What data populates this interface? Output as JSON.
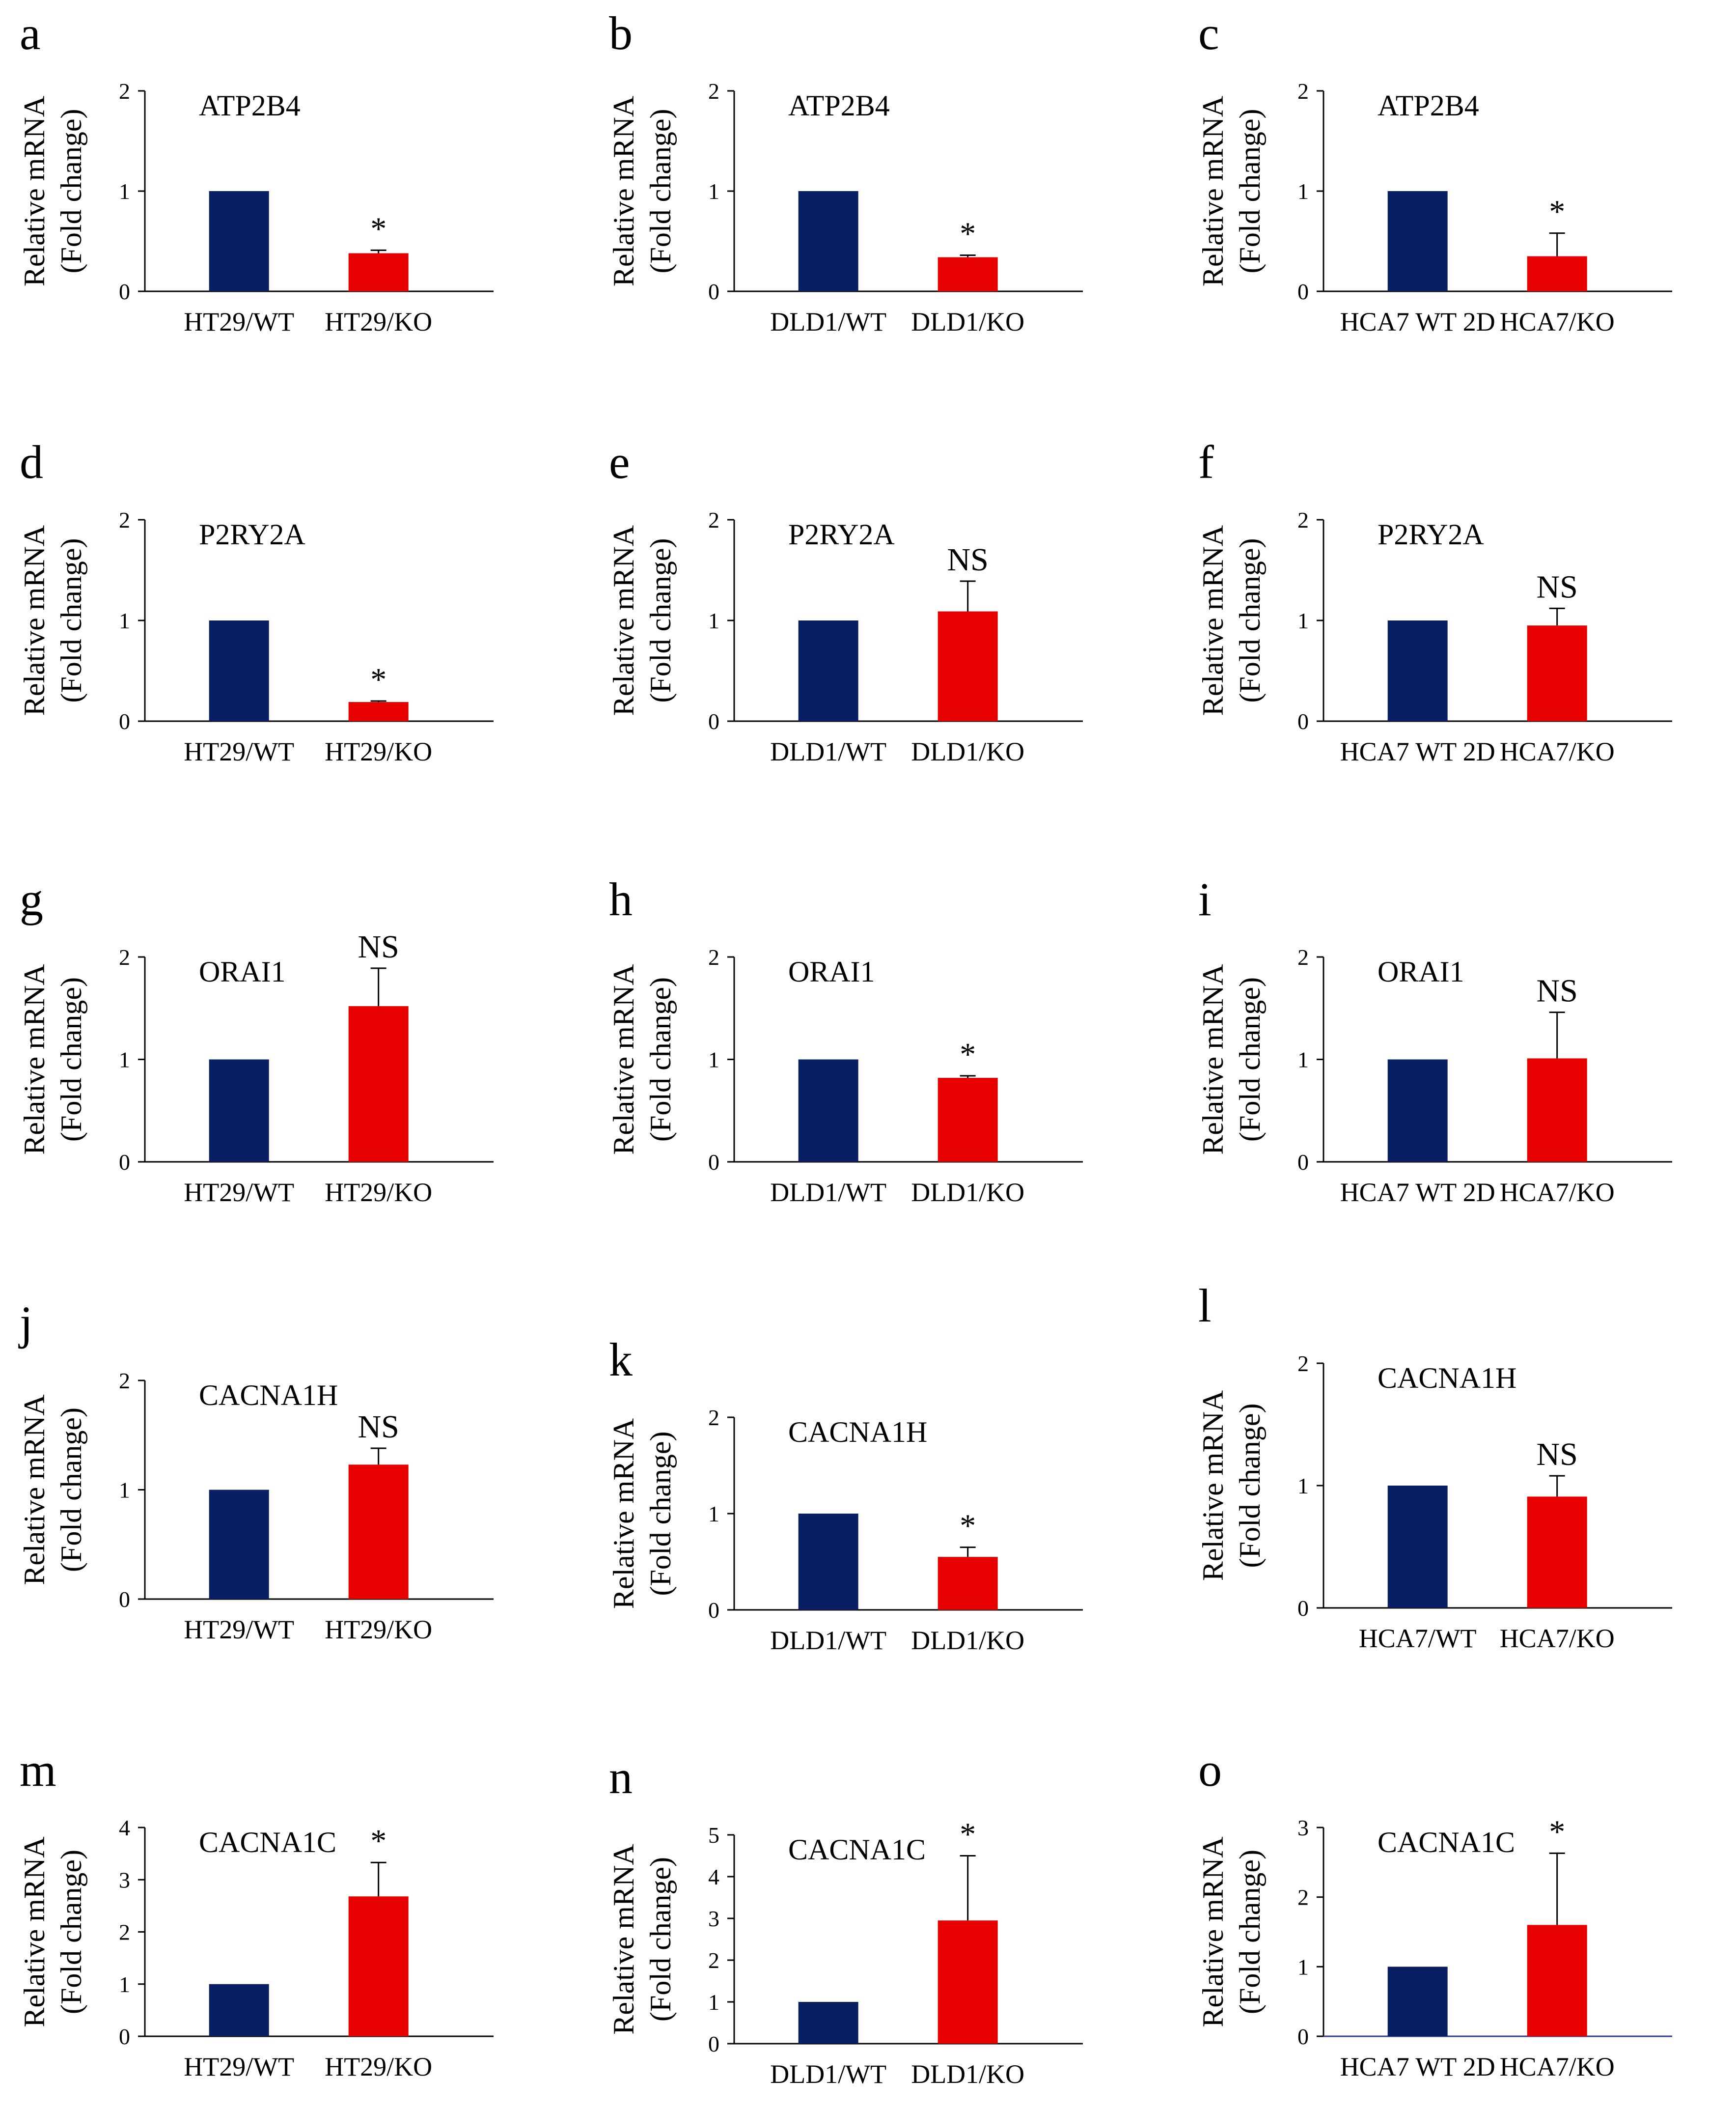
{
  "figure": {
    "colors": {
      "wt": "#0a1f63",
      "ko": "#e60000",
      "axis": "#000000",
      "axis_alt": "#2f3a8f"
    }
  },
  "chart_data": [
    {
      "type": "bar",
      "panel": "a",
      "title": "ATP2B4",
      "ylabel": "Relative mRNA",
      "ylabel2": "(Fold change)",
      "ylim": [
        0,
        2
      ],
      "yticks": [
        0,
        1,
        2
      ],
      "categories": [
        "HT29/WT",
        "HT29/KO"
      ],
      "values": [
        1.0,
        0.38
      ],
      "errors": [
        0.0,
        0.03
      ],
      "annotation": "*"
    },
    {
      "type": "bar",
      "panel": "b",
      "title": "ATP2B4",
      "ylabel": "Relative mRNA",
      "ylabel2": "(Fold change)",
      "ylim": [
        0,
        2
      ],
      "yticks": [
        0,
        1,
        2
      ],
      "categories": [
        "DLD1/WT",
        "DLD1/KO"
      ],
      "values": [
        1.0,
        0.34
      ],
      "errors": [
        0.0,
        0.02
      ],
      "annotation": "*"
    },
    {
      "type": "bar",
      "panel": "c",
      "title": "ATP2B4",
      "ylabel": "Relative mRNA",
      "ylabel2": "(Fold change)",
      "ylim": [
        0,
        2
      ],
      "yticks": [
        0,
        1,
        2
      ],
      "categories": [
        "HCA7 WT 2D",
        "HCA7/KO"
      ],
      "values": [
        1.0,
        0.35
      ],
      "errors": [
        0.0,
        0.23
      ],
      "annotation": "*"
    },
    {
      "type": "bar",
      "panel": "d",
      "title": "P2RY2A",
      "ylabel": "Relative mRNA",
      "ylabel2": "(Fold change)",
      "ylim": [
        0,
        2
      ],
      "yticks": [
        0,
        1,
        2
      ],
      "categories": [
        "HT29/WT",
        "HT29/KO"
      ],
      "values": [
        1.0,
        0.19
      ],
      "errors": [
        0.0,
        0.01
      ],
      "annotation": "*"
    },
    {
      "type": "bar",
      "panel": "e",
      "title": "P2RY2A",
      "ylabel": "Relative mRNA",
      "ylabel2": "(Fold change)",
      "ylim": [
        0,
        2
      ],
      "yticks": [
        0,
        1,
        2
      ],
      "categories": [
        "DLD1/WT",
        "DLD1/KO"
      ],
      "values": [
        1.0,
        1.09
      ],
      "errors": [
        0.0,
        0.3
      ],
      "annotation": "NS"
    },
    {
      "type": "bar",
      "panel": "f",
      "title": "P2RY2A",
      "ylabel": "Relative mRNA",
      "ylabel2": "(Fold change)",
      "ylim": [
        0,
        2
      ],
      "yticks": [
        0,
        1,
        2
      ],
      "categories": [
        "HCA7 WT 2D",
        "HCA7/KO"
      ],
      "values": [
        1.0,
        0.95
      ],
      "errors": [
        0.0,
        0.17
      ],
      "annotation": "NS"
    },
    {
      "type": "bar",
      "panel": "g",
      "title": "ORAI1",
      "ylabel": "Relative mRNA",
      "ylabel2": "(Fold change)",
      "ylim": [
        0,
        2
      ],
      "yticks": [
        0,
        1,
        2
      ],
      "categories": [
        "HT29/WT",
        "HT29/KO"
      ],
      "values": [
        1.0,
        1.52
      ],
      "errors": [
        0.0,
        0.37
      ],
      "annotation": "NS"
    },
    {
      "type": "bar",
      "panel": "h",
      "title": "ORAI1",
      "ylabel": "Relative mRNA",
      "ylabel2": "(Fold change)",
      "ylim": [
        0,
        2
      ],
      "yticks": [
        0,
        1,
        2
      ],
      "categories": [
        "DLD1/WT",
        "DLD1/KO"
      ],
      "values": [
        1.0,
        0.82
      ],
      "errors": [
        0.0,
        0.02
      ],
      "annotation": "*"
    },
    {
      "type": "bar",
      "panel": "i",
      "title": "ORAI1",
      "ylabel": "Relative mRNA",
      "ylabel2": "(Fold change)",
      "ylim": [
        0,
        2
      ],
      "yticks": [
        0,
        1,
        2
      ],
      "categories": [
        "HCA7 WT 2D",
        "HCA7/KO"
      ],
      "values": [
        1.0,
        1.01
      ],
      "errors": [
        0.0,
        0.45
      ],
      "annotation": "NS"
    },
    {
      "type": "bar",
      "panel": "j",
      "title": "CACNA1H",
      "ylabel": "Relative mRNA",
      "ylabel2": "(Fold change)",
      "ylim": [
        0,
        2
      ],
      "yticks": [
        0,
        1,
        2
      ],
      "categories": [
        "HT29/WT",
        "HT29/KO"
      ],
      "values": [
        1.0,
        1.23
      ],
      "errors": [
        0.0,
        0.15
      ],
      "annotation": "NS"
    },
    {
      "type": "bar",
      "panel": "k",
      "title": "CACNA1H",
      "ylabel": "Relative mRNA",
      "ylabel2": "(Fold change)",
      "ylim": [
        0,
        2
      ],
      "yticks": [
        0,
        1,
        2
      ],
      "categories": [
        "DLD1/WT",
        "DLD1/KO"
      ],
      "values": [
        1.0,
        0.55
      ],
      "errors": [
        0.0,
        0.1
      ],
      "annotation": "*"
    },
    {
      "type": "bar",
      "panel": "l",
      "title": "CACNA1H",
      "ylabel": "Relative mRNA",
      "ylabel2": "(Fold change)",
      "ylim": [
        0,
        2
      ],
      "yticks": [
        0,
        1,
        2
      ],
      "categories": [
        "HCA7/WT",
        "HCA7/KO"
      ],
      "values": [
        1.0,
        0.91
      ],
      "errors": [
        0.0,
        0.17
      ],
      "annotation": "NS"
    },
    {
      "type": "bar",
      "panel": "m",
      "title": "CACNA1C",
      "ylabel": "Relative mRNA",
      "ylabel2": "(Fold change)",
      "ylim": [
        0,
        4
      ],
      "yticks": [
        0,
        1,
        2,
        3,
        4
      ],
      "categories": [
        "HT29/WT",
        "HT29/KO"
      ],
      "values": [
        1.0,
        2.68
      ],
      "errors": [
        0.0,
        0.65
      ],
      "annotation": "*"
    },
    {
      "type": "bar",
      "panel": "n",
      "title": "CACNA1C",
      "ylabel": "Relative mRNA",
      "ylabel2": "(Fold change)",
      "ylim": [
        0,
        5
      ],
      "yticks": [
        0,
        1,
        2,
        3,
        4,
        5
      ],
      "categories": [
        "DLD1/WT",
        "DLD1/KO"
      ],
      "values": [
        1.0,
        2.95
      ],
      "errors": [
        0.0,
        1.55
      ],
      "annotation": "*"
    },
    {
      "type": "bar",
      "panel": "o",
      "title": "CACNA1C",
      "ylabel": "Relative mRNA",
      "ylabel2": "(Fold change)",
      "ylim": [
        0,
        3
      ],
      "yticks": [
        0,
        1,
        2,
        3
      ],
      "categories": [
        "HCA7 WT 2D",
        "HCA7/KO"
      ],
      "values": [
        1.0,
        1.6
      ],
      "errors": [
        0.0,
        1.03
      ],
      "annotation": "*"
    }
  ]
}
